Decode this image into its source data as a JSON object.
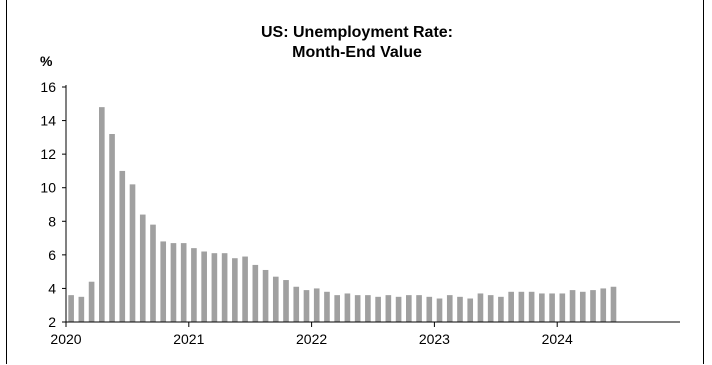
{
  "chart_data": {
    "type": "bar",
    "title": "US: Unemployment Rate:",
    "subtitle": "Month-End Value",
    "ylabel": "%",
    "xlabel": "",
    "ylim": [
      2,
      16
    ],
    "yticks": [
      2,
      4,
      6,
      8,
      10,
      12,
      14,
      16
    ],
    "xticks": [
      "2020",
      "2021",
      "2022",
      "2023",
      "2024"
    ],
    "grid": false,
    "legend": "none",
    "bar_color": "#a0a0a0",
    "x": [
      "2020-01",
      "2020-02",
      "2020-03",
      "2020-04",
      "2020-05",
      "2020-06",
      "2020-07",
      "2020-08",
      "2020-09",
      "2020-10",
      "2020-11",
      "2020-12",
      "2021-01",
      "2021-02",
      "2021-03",
      "2021-04",
      "2021-05",
      "2021-06",
      "2021-07",
      "2021-08",
      "2021-09",
      "2021-10",
      "2021-11",
      "2021-12",
      "2022-01",
      "2022-02",
      "2022-03",
      "2022-04",
      "2022-05",
      "2022-06",
      "2022-07",
      "2022-08",
      "2022-09",
      "2022-10",
      "2022-11",
      "2022-12",
      "2023-01",
      "2023-02",
      "2023-03",
      "2023-04",
      "2023-05",
      "2023-06",
      "2023-07",
      "2023-08",
      "2023-09",
      "2023-10",
      "2023-11",
      "2023-12",
      "2024-01",
      "2024-02",
      "2024-03",
      "2024-04",
      "2024-05",
      "2024-06"
    ],
    "values": [
      3.6,
      3.5,
      4.4,
      14.8,
      13.2,
      11.0,
      10.2,
      8.4,
      7.8,
      6.8,
      6.7,
      6.7,
      6.4,
      6.2,
      6.1,
      6.1,
      5.8,
      5.9,
      5.4,
      5.1,
      4.7,
      4.5,
      4.1,
      3.9,
      4.0,
      3.8,
      3.6,
      3.7,
      3.6,
      3.6,
      3.5,
      3.6,
      3.5,
      3.6,
      3.6,
      3.5,
      3.4,
      3.6,
      3.5,
      3.4,
      3.7,
      3.6,
      3.5,
      3.8,
      3.8,
      3.8,
      3.7,
      3.7,
      3.7,
      3.9,
      3.8,
      3.9,
      4.0,
      4.1
    ]
  }
}
